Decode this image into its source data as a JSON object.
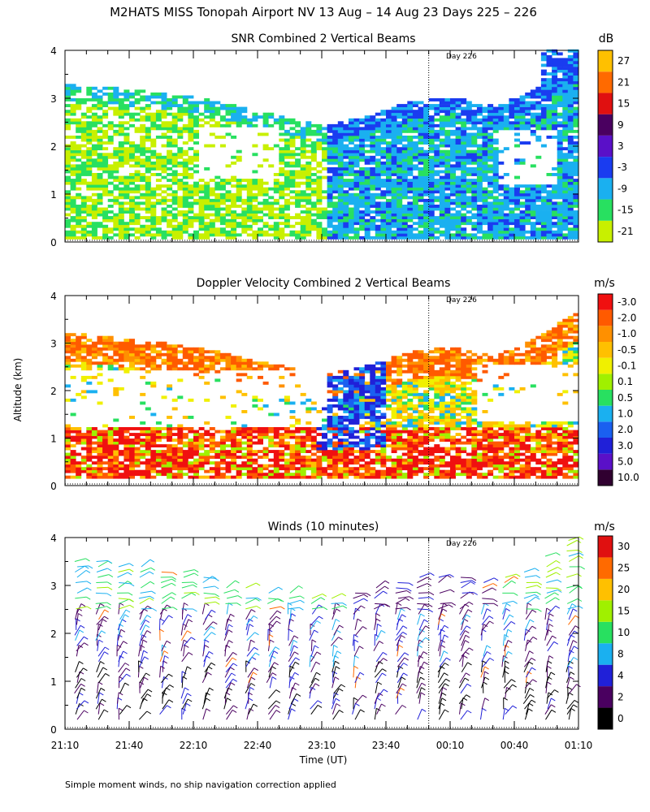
{
  "figure": {
    "title": "M2HATS MISS Tonopah Airport NV  13 Aug – 14 Aug 23 Days 225 – 226",
    "ylabel": "Altitude (km)",
    "xlabel": "Time (UT)",
    "footnote": "Simple moment winds, no ship navigation correction applied"
  },
  "chart_data": [
    {
      "type": "heatmap",
      "title": "SNR Combined 2 Vertical Beams",
      "units": "dB",
      "day_marker": "Day 226",
      "day_marker_time": "00:00",
      "ylim": [
        0,
        4
      ],
      "yticks": [
        "0",
        "1",
        "2",
        "3",
        "4"
      ],
      "xlim": [
        "21:10",
        "01:10"
      ],
      "colorbar": {
        "labels": [
          "-21",
          "-15",
          "-9",
          "-3",
          "3",
          "9",
          "15",
          "21",
          "27"
        ],
        "colors": [
          "#c8f000",
          "#28e060",
          "#1ab0f0",
          "#1a3cf0",
          "#5a10c8",
          "#4a0060",
          "#e01010",
          "#ff6a00",
          "#ffc000"
        ]
      },
      "description_features": {
        "cloud_layer_top_km": [
          3.3,
          3.2,
          3.1,
          3.0,
          2.8,
          2.6,
          2.4,
          2.6,
          2.9,
          3.0,
          2.8,
          3.2,
          3.8
        ],
        "times": [
          "21:10",
          "21:30",
          "21:50",
          "22:10",
          "22:30",
          "22:50",
          "23:10",
          "23:30",
          "23:50",
          "00:10",
          "00:30",
          "00:50",
          "01:10"
        ]
      }
    },
    {
      "type": "heatmap",
      "title": "Doppler Velocity Combined 2 Vertical Beams",
      "units": "m/s",
      "day_marker": "Day 226",
      "day_marker_time": "00:00",
      "ylim": [
        0,
        4
      ],
      "yticks": [
        "0",
        "1",
        "2",
        "3",
        "4"
      ],
      "xlim": [
        "21:10",
        "01:10"
      ],
      "colorbar": {
        "labels": [
          "10.0",
          "5.0",
          "3.0",
          "2.0",
          "1.0",
          "0.5",
          "0.1",
          "-0.1",
          "-0.5",
          "-1.0",
          "-2.0",
          "-3.0"
        ],
        "colors": [
          "#300030",
          "#5a10c8",
          "#2020d8",
          "#1a60f0",
          "#1ab0f0",
          "#28e060",
          "#a0f000",
          "#f0f000",
          "#ffc000",
          "#ff9000",
          "#ff5a00",
          "#f01010"
        ]
      }
    },
    {
      "type": "scatter",
      "title": "Winds (10 minutes)",
      "units": "m/s",
      "day_marker": "Day 226",
      "day_marker_time": "00:00",
      "ylim": [
        0,
        4
      ],
      "yticks": [
        "0",
        "1",
        "2",
        "3",
        "4"
      ],
      "xlim": [
        "21:10",
        "01:10"
      ],
      "xticks": [
        "21:10",
        "21:40",
        "22:10",
        "22:40",
        "23:10",
        "23:40",
        "00:10",
        "00:40",
        "01:10"
      ],
      "colorbar": {
        "labels": [
          "0",
          "2",
          "4",
          "8",
          "10",
          "15",
          "20",
          "25",
          "30"
        ],
        "colors": [
          "#000000",
          "#4a0060",
          "#2020d8",
          "#1ab0f0",
          "#28e060",
          "#a0f000",
          "#ffc000",
          "#ff6a00",
          "#e01010"
        ]
      }
    }
  ]
}
